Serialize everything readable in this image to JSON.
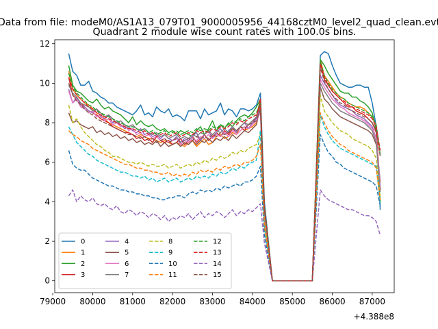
{
  "chart_data": {
    "type": "line",
    "suptitle": "Data from file: modeM0/AS1A13_079T01_9000005956_44168cztM0_level2_quad_clean.evt",
    "title": "Quadrant 2 module wise count rates with 100.0s bins.",
    "xlabel": "",
    "ylabel": "",
    "offset_text": "+4.388e8",
    "x_offset": 438800000,
    "xlim": [
      79050,
      87550
    ],
    "ylim": [
      -0.6,
      12.2
    ],
    "x_ticks": [
      79000,
      80000,
      81000,
      82000,
      83000,
      84000,
      85000,
      86000,
      87000
    ],
    "y_ticks": [
      0,
      2,
      4,
      6,
      8,
      10,
      12
    ],
    "x_tick_labels": [
      "79000",
      "80000",
      "81000",
      "82000",
      "83000",
      "84000",
      "85000",
      "86000",
      "87000"
    ],
    "y_tick_labels": [
      "0",
      "2",
      "4",
      "6",
      "8",
      "10",
      "12"
    ],
    "grid": false,
    "legend_placement": "lower-left",
    "legend_columns": 4,
    "x_segments": [
      {
        "start": 79400,
        "end": 84200,
        "step": 100
      },
      {
        "start": 84300,
        "end": 84300,
        "step": 100
      },
      {
        "start": 84500,
        "end": 85500,
        "step": 100
      },
      {
        "start": 85700,
        "end": 87200,
        "step": 100
      }
    ],
    "series": [
      {
        "name": "0",
        "color": "#1f77b4",
        "dash": "solid",
        "profile1": [
          11.5,
          10.6,
          10.4,
          9.9,
          9.9,
          10.1,
          9.6,
          9.5,
          9.3,
          9.2,
          9.0,
          9.0,
          8.8,
          8.7,
          8.6,
          8.5,
          8.4,
          8.6,
          8.9,
          8.4,
          8.5,
          8.3,
          8.8,
          8.6,
          8.5,
          8.7,
          8.3,
          8.4,
          8.3,
          8.1,
          8.6,
          8.6,
          8.6,
          8.2,
          8.7,
          8.4,
          8.5,
          8.6,
          9.0,
          8.4,
          8.7,
          8.6,
          8.3,
          8.7,
          8.7,
          8.6,
          8.7,
          8.9,
          9.5
        ],
        "spike": 4.0,
        "profile2": [
          11.4,
          11.6,
          11.5,
          10.9,
          10.4,
          10.0,
          9.9,
          9.8,
          9.8,
          9.9,
          9.9,
          9.8,
          9.8,
          9.0,
          7.8,
          3.6
        ]
      },
      {
        "name": "1",
        "color": "#ff7f0e",
        "dash": "solid",
        "profile1": [
          10.6,
          9.7,
          9.4,
          9.2,
          9.0,
          8.9,
          8.7,
          8.5,
          8.4,
          8.2,
          8.0,
          7.9,
          7.8,
          7.7,
          7.6,
          7.5,
          7.4,
          7.3,
          7.4,
          7.3,
          7.2,
          7.2,
          7.1,
          7.0,
          7.1,
          7.0,
          6.9,
          7.0,
          6.9,
          6.8,
          7.0,
          7.1,
          6.8,
          7.0,
          7.2,
          6.9,
          7.0,
          7.3,
          7.4,
          7.2,
          7.3,
          7.5,
          7.4,
          7.8,
          7.6,
          7.7,
          7.8,
          8.0,
          9.0
        ],
        "spike": 3.6,
        "profile2": [
          11.2,
          10.4,
          10.1,
          9.8,
          9.5,
          9.3,
          9.2,
          9.0,
          8.9,
          8.8,
          8.8,
          8.7,
          8.5,
          8.3,
          7.8,
          4.6
        ]
      },
      {
        "name": "2",
        "color": "#2ca02c",
        "dash": "solid",
        "profile1": [
          10.9,
          9.9,
          9.6,
          9.5,
          9.3,
          9.1,
          9.0,
          9.2,
          8.9,
          8.7,
          8.8,
          8.6,
          8.5,
          8.4,
          8.2,
          8.0,
          8.3,
          7.9,
          8.1,
          7.9,
          7.8,
          7.9,
          7.7,
          7.6,
          7.7,
          7.5,
          7.6,
          7.4,
          7.6,
          7.5,
          7.4,
          7.3,
          7.6,
          7.8,
          7.4,
          7.7,
          8.1,
          7.6,
          7.9,
          7.7,
          8.0,
          7.8,
          8.1,
          8.3,
          8.4,
          8.3,
          8.5,
          8.8,
          9.2
        ],
        "spike": 3.8,
        "profile2": [
          11.2,
          10.9,
          10.5,
          10.2,
          9.9,
          9.6,
          9.5,
          9.5,
          9.3,
          9.3,
          9.1,
          9.0,
          8.8,
          8.5,
          7.6,
          4.0
        ]
      },
      {
        "name": "3",
        "color": "#d62728",
        "dash": "solid",
        "profile1": [
          10.3,
          9.4,
          9.2,
          9.0,
          8.8,
          8.6,
          8.5,
          8.4,
          8.2,
          8.1,
          8.0,
          7.8,
          7.7,
          7.6,
          7.5,
          7.5,
          7.4,
          7.2,
          7.3,
          7.1,
          7.2,
          7.0,
          7.3,
          7.1,
          7.0,
          7.1,
          6.9,
          7.0,
          7.2,
          6.9,
          7.1,
          7.3,
          7.0,
          7.2,
          7.4,
          7.1,
          7.3,
          7.5,
          7.3,
          7.6,
          7.4,
          7.7,
          7.5,
          7.8,
          7.6,
          7.9,
          8.0,
          8.3,
          9.2
        ],
        "spike": 3.7,
        "profile2": [
          11.0,
          10.2,
          9.9,
          9.6,
          9.4,
          9.2,
          9.0,
          8.8,
          8.8,
          8.6,
          8.5,
          8.4,
          8.2,
          8.0,
          7.5,
          4.6
        ]
      },
      {
        "name": "4",
        "color": "#9467bd",
        "dash": "solid",
        "profile1": [
          9.7,
          9.0,
          9.3,
          8.9,
          8.8,
          8.6,
          8.5,
          8.7,
          8.3,
          8.2,
          8.4,
          8.0,
          8.1,
          7.9,
          7.7,
          7.8,
          7.6,
          7.5,
          7.7,
          7.4,
          7.5,
          7.3,
          7.4,
          7.2,
          7.4,
          7.2,
          7.1,
          7.3,
          7.0,
          7.2,
          7.1,
          7.3,
          7.5,
          7.1,
          7.4,
          7.6,
          7.2,
          7.5,
          7.7,
          7.4,
          7.6,
          7.8,
          7.5,
          7.8,
          8.0,
          7.7,
          8.0,
          8.2,
          8.8
        ],
        "spike": 3.5,
        "profile2": [
          10.4,
          10.0,
          9.7,
          9.4,
          9.1,
          8.9,
          8.8,
          8.7,
          8.6,
          8.4,
          8.3,
          8.2,
          8.0,
          7.8,
          7.2,
          5.0
        ]
      },
      {
        "name": "5",
        "color": "#8c564b",
        "dash": "solid",
        "profile1": [
          8.5,
          8.0,
          8.1,
          7.9,
          7.8,
          7.7,
          7.8,
          7.5,
          7.6,
          7.4,
          7.5,
          7.3,
          7.4,
          7.2,
          7.3,
          7.1,
          7.2,
          7.0,
          7.1,
          6.9,
          7.0,
          6.9,
          7.1,
          6.8,
          7.0,
          6.8,
          6.9,
          7.0,
          6.8,
          7.0,
          6.9,
          7.1,
          6.9,
          7.1,
          7.0,
          7.2,
          7.0,
          7.2,
          7.1,
          7.3,
          7.1,
          7.4,
          7.2,
          7.4,
          7.6,
          7.5,
          7.7,
          7.9,
          8.8
        ],
        "spike": 3.4,
        "profile2": [
          9.8,
          9.2,
          9.0,
          8.7,
          8.5,
          8.3,
          8.2,
          8.1,
          8.0,
          7.9,
          7.8,
          7.7,
          7.6,
          7.4,
          6.9,
          5.0
        ]
      },
      {
        "name": "6",
        "color": "#e377c2",
        "dash": "solid",
        "profile1": [
          9.6,
          9.0,
          9.2,
          8.8,
          8.7,
          8.5,
          8.6,
          8.3,
          8.4,
          8.1,
          8.2,
          7.9,
          8.0,
          7.8,
          7.9,
          7.6,
          7.7,
          7.4,
          7.5,
          7.3,
          7.4,
          7.2,
          7.3,
          7.1,
          7.2,
          7.0,
          7.1,
          7.2,
          6.9,
          7.1,
          7.0,
          7.2,
          7.1,
          7.3,
          7.2,
          7.4,
          7.2,
          7.4,
          7.3,
          7.5,
          7.3,
          7.6,
          7.4,
          7.6,
          7.8,
          7.7,
          7.9,
          8.1,
          8.5
        ],
        "spike": 3.5,
        "profile2": [
          10.2,
          9.8,
          9.5,
          9.2,
          9.0,
          8.8,
          8.7,
          8.5,
          8.4,
          8.3,
          8.2,
          8.1,
          7.9,
          7.7,
          7.2,
          4.8
        ]
      },
      {
        "name": "7",
        "color": "#7f7f7f",
        "dash": "solid",
        "profile1": [
          9.9,
          9.5,
          9.3,
          9.0,
          8.9,
          8.8,
          8.6,
          8.7,
          8.5,
          8.3,
          8.4,
          8.2,
          8.0,
          8.1,
          7.9,
          7.8,
          7.9,
          7.7,
          7.6,
          7.7,
          7.5,
          7.4,
          7.5,
          7.3,
          7.4,
          7.2,
          7.3,
          7.4,
          7.2,
          7.3,
          7.2,
          7.4,
          7.3,
          7.5,
          7.4,
          7.6,
          7.4,
          7.6,
          7.5,
          7.7,
          7.5,
          7.8,
          7.6,
          7.8,
          8.0,
          7.9,
          8.1,
          8.3,
          8.6
        ],
        "spike": 3.6,
        "profile2": [
          10.0,
          9.6,
          9.3,
          9.0,
          8.8,
          8.6,
          8.5,
          8.4,
          8.3,
          8.2,
          8.1,
          8.0,
          7.8,
          7.6,
          7.0,
          4.5
        ]
      },
      {
        "name": "8",
        "color": "#bcbd22",
        "dash": "dashed",
        "profile1": [
          8.9,
          8.0,
          8.2,
          7.8,
          7.5,
          7.3,
          7.1,
          6.9,
          6.8,
          6.6,
          6.5,
          6.3,
          6.3,
          6.2,
          6.1,
          6.0,
          6.0,
          5.9,
          6.0,
          5.9,
          5.8,
          5.9,
          5.8,
          5.8,
          5.9,
          5.7,
          5.8,
          5.9,
          5.7,
          5.8,
          5.9,
          5.8,
          6.0,
          5.9,
          6.1,
          6.0,
          6.2,
          6.1,
          6.3,
          6.2,
          6.3,
          6.5,
          6.4,
          6.6,
          6.5,
          6.7,
          6.8,
          6.9,
          7.4
        ],
        "spike": 3.0,
        "profile2": [
          9.4,
          8.6,
          8.3,
          8.0,
          7.8,
          7.6,
          7.5,
          7.4,
          7.2,
          7.1,
          7.0,
          6.9,
          6.8,
          6.6,
          6.2,
          4.2
        ]
      },
      {
        "name": "9",
        "color": "#17becf",
        "dash": "dashed",
        "profile1": [
          7.8,
          7.4,
          7.0,
          6.8,
          6.6,
          6.4,
          6.3,
          6.1,
          6.0,
          5.9,
          5.8,
          5.7,
          5.6,
          5.5,
          5.5,
          5.4,
          5.3,
          5.3,
          5.2,
          5.3,
          5.1,
          5.2,
          5.0,
          5.1,
          5.2,
          5.0,
          5.1,
          5.2,
          5.0,
          5.1,
          5.2,
          5.1,
          5.3,
          5.2,
          5.3,
          5.2,
          5.4,
          5.3,
          5.5,
          5.4,
          5.5,
          5.7,
          5.6,
          5.8,
          5.7,
          5.9,
          6.0,
          6.1,
          7.6
        ],
        "spike": 2.7,
        "profile2": [
          8.4,
          7.8,
          7.4,
          7.1,
          6.9,
          6.7,
          6.6,
          6.5,
          6.4,
          6.3,
          6.2,
          6.1,
          6.0,
          5.9,
          5.8,
          3.9
        ]
      },
      {
        "name": "10",
        "color": "#1f77b4",
        "dash": "dashed",
        "profile1": [
          6.6,
          5.9,
          5.7,
          5.6,
          5.6,
          5.4,
          5.2,
          5.1,
          5.0,
          4.9,
          4.8,
          4.8,
          4.7,
          4.6,
          4.6,
          4.5,
          4.5,
          4.4,
          4.4,
          4.3,
          4.3,
          4.2,
          4.2,
          4.1,
          4.1,
          4.2,
          4.2,
          4.3,
          4.3,
          4.2,
          4.4,
          4.5,
          4.4,
          4.6,
          4.5,
          4.6,
          4.5,
          4.7,
          4.6,
          4.8,
          4.7,
          4.8,
          4.9,
          4.8,
          5.0,
          5.0,
          5.1,
          5.3,
          5.8
        ],
        "spike": 2.3,
        "profile2": [
          7.4,
          6.9,
          6.5,
          6.3,
          6.0,
          5.9,
          5.7,
          5.6,
          5.5,
          5.4,
          5.3,
          5.2,
          5.1,
          5.0,
          4.8,
          3.8
        ]
      },
      {
        "name": "11",
        "color": "#ff7f0e",
        "dash": "dashed",
        "profile1": [
          7.6,
          7.4,
          7.3,
          7.1,
          7.0,
          6.9,
          6.7,
          6.6,
          6.5,
          6.4,
          6.3,
          6.2,
          6.1,
          6.0,
          5.9,
          5.9,
          5.8,
          5.7,
          5.7,
          5.6,
          5.6,
          5.5,
          5.5,
          5.4,
          5.4,
          5.5,
          5.3,
          5.4,
          5.3,
          5.4,
          5.3,
          5.5,
          5.4,
          5.6,
          5.5,
          5.6,
          5.5,
          5.7,
          5.6,
          5.8,
          5.7,
          5.8,
          5.9,
          5.8,
          6.0,
          6.0,
          6.1,
          6.3,
          6.9
        ],
        "spike": 2.8,
        "profile2": [
          8.5,
          8.0,
          7.6,
          7.3,
          7.1,
          6.9,
          6.8,
          6.6,
          6.5,
          6.4,
          6.3,
          6.2,
          6.1,
          6.0,
          5.7,
          4.1
        ]
      },
      {
        "name": "12",
        "color": "#2ca02c",
        "dash": "dashed",
        "profile1": [
          10.5,
          9.8,
          9.5,
          9.3,
          9.1,
          8.9,
          8.8,
          8.6,
          8.5,
          8.4,
          8.3,
          8.2,
          8.1,
          8.0,
          7.9,
          7.8,
          7.8,
          7.7,
          7.6,
          7.7,
          7.5,
          7.6,
          7.4,
          7.5,
          7.6,
          7.4,
          7.5,
          7.6,
          7.4,
          7.5,
          7.6,
          7.5,
          7.7,
          7.6,
          7.7,
          7.6,
          7.8,
          7.7,
          7.9,
          7.8,
          7.9,
          8.1,
          8.0,
          8.2,
          8.1,
          8.3,
          8.4,
          8.5,
          9.0
        ],
        "spike": 3.7,
        "profile2": [
          11.1,
          10.4,
          10.0,
          9.7,
          9.5,
          9.3,
          9.2,
          9.0,
          8.9,
          8.8,
          8.7,
          8.6,
          8.5,
          8.3,
          7.9,
          6.4
        ]
      },
      {
        "name": "13",
        "color": "#d62728",
        "dash": "dashed",
        "profile1": [
          10.3,
          9.7,
          9.4,
          9.2,
          9.0,
          8.8,
          8.7,
          8.5,
          8.4,
          8.3,
          8.2,
          8.1,
          8.0,
          7.9,
          7.8,
          7.7,
          7.7,
          7.6,
          7.5,
          7.6,
          7.4,
          7.5,
          7.3,
          7.4,
          7.5,
          7.3,
          7.4,
          7.5,
          7.3,
          7.4,
          7.5,
          7.4,
          7.6,
          7.5,
          7.6,
          7.5,
          7.7,
          7.6,
          7.8,
          7.7,
          7.8,
          8.0,
          7.9,
          8.1,
          8.0,
          8.2,
          8.3,
          8.4,
          8.9
        ],
        "spike": 3.7,
        "profile2": [
          11.0,
          10.3,
          9.9,
          9.6,
          9.4,
          9.2,
          9.1,
          8.9,
          8.8,
          8.7,
          8.6,
          8.5,
          8.4,
          8.2,
          7.8,
          6.6
        ]
      },
      {
        "name": "14",
        "color": "#9467bd",
        "dash": "dashed",
        "profile1": [
          4.3,
          4.6,
          4.0,
          4.3,
          4.1,
          4.0,
          4.2,
          3.9,
          3.8,
          3.9,
          3.7,
          3.6,
          3.8,
          3.5,
          3.4,
          3.6,
          3.5,
          3.3,
          3.5,
          3.4,
          3.2,
          3.4,
          3.3,
          3.1,
          3.3,
          3.0,
          3.2,
          3.1,
          3.3,
          3.2,
          3.4,
          3.1,
          3.3,
          3.5,
          3.2,
          3.4,
          3.3,
          3.5,
          3.4,
          3.2,
          3.4,
          3.6,
          3.3,
          3.5,
          3.4,
          3.6,
          3.5,
          3.7,
          3.9
        ],
        "spike": 1.9,
        "profile2": [
          4.6,
          4.3,
          4.1,
          4.0,
          3.9,
          3.8,
          3.7,
          3.6,
          3.6,
          3.5,
          3.4,
          3.3,
          3.3,
          3.2,
          3.0,
          2.3
        ]
      },
      {
        "name": "15",
        "color": "#8c564b",
        "dash": "dashed",
        "profile1": [
          10.0,
          9.4,
          9.1,
          8.9,
          8.7,
          8.5,
          8.4,
          8.2,
          8.1,
          8.0,
          7.9,
          7.8,
          7.7,
          7.6,
          7.5,
          7.4,
          7.4,
          7.3,
          7.2,
          7.3,
          7.1,
          7.2,
          7.0,
          7.1,
          7.2,
          7.0,
          7.1,
          7.2,
          7.0,
          7.1,
          7.2,
          7.1,
          7.3,
          7.2,
          7.3,
          7.2,
          7.4,
          7.3,
          7.5,
          7.4,
          7.5,
          7.7,
          7.6,
          7.8,
          7.7,
          7.9,
          8.0,
          8.1,
          8.7
        ],
        "spike": 3.6,
        "profile2": [
          10.8,
          10.1,
          9.7,
          9.4,
          9.2,
          9.0,
          8.9,
          8.7,
          8.6,
          8.5,
          8.4,
          8.3,
          8.2,
          8.0,
          7.6,
          6.3
        ]
      }
    ]
  }
}
